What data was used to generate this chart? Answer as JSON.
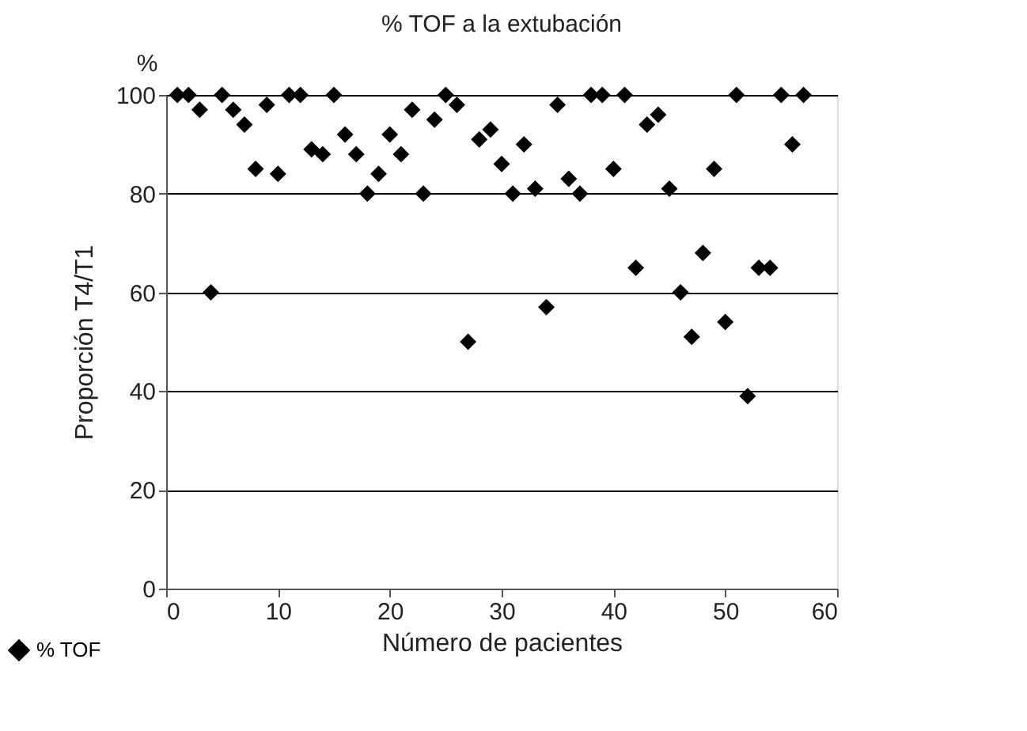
{
  "chart_data": {
    "type": "scatter",
    "title": "% TOF a la extubación",
    "xlabel": "Número de pacientes",
    "ylabel": "Proporción T4/T1",
    "annotations": [
      "%"
    ],
    "x": [
      1,
      2,
      3,
      4,
      5,
      6,
      7,
      8,
      9,
      10,
      11,
      12,
      13,
      14,
      15,
      16,
      17,
      18,
      19,
      20,
      21,
      22,
      23,
      24,
      25,
      26,
      27,
      28,
      29,
      30,
      31,
      32,
      33,
      34,
      35,
      36,
      37,
      38,
      39,
      40,
      41,
      42,
      43,
      44,
      45,
      46,
      47,
      48,
      49,
      50,
      51,
      52,
      53,
      54,
      55,
      56,
      57
    ],
    "series": [
      {
        "name": "% TOF",
        "color": "#000000",
        "values": [
          100,
          100,
          97,
          60,
          100,
          97,
          94,
          85,
          98,
          84,
          100,
          100,
          89,
          88,
          100,
          92,
          88,
          80,
          84,
          92,
          88,
          97,
          80,
          95,
          100,
          98,
          50,
          91,
          93,
          86,
          80,
          90,
          81,
          57,
          98,
          83,
          80,
          100,
          100,
          85,
          100,
          65,
          94,
          96,
          81,
          60,
          51,
          68,
          85,
          54,
          100,
          39,
          65,
          65,
          100,
          90,
          100
        ]
      }
    ],
    "xlim": [
      0,
      60
    ],
    "xticks": [
      0,
      10,
      20,
      30,
      40,
      50,
      60
    ],
    "ylim": [
      0,
      100
    ],
    "yticks": [
      0,
      20,
      40,
      60,
      80,
      100
    ],
    "grid": "y",
    "legend": "bottom left",
    "marker": "diamond"
  }
}
